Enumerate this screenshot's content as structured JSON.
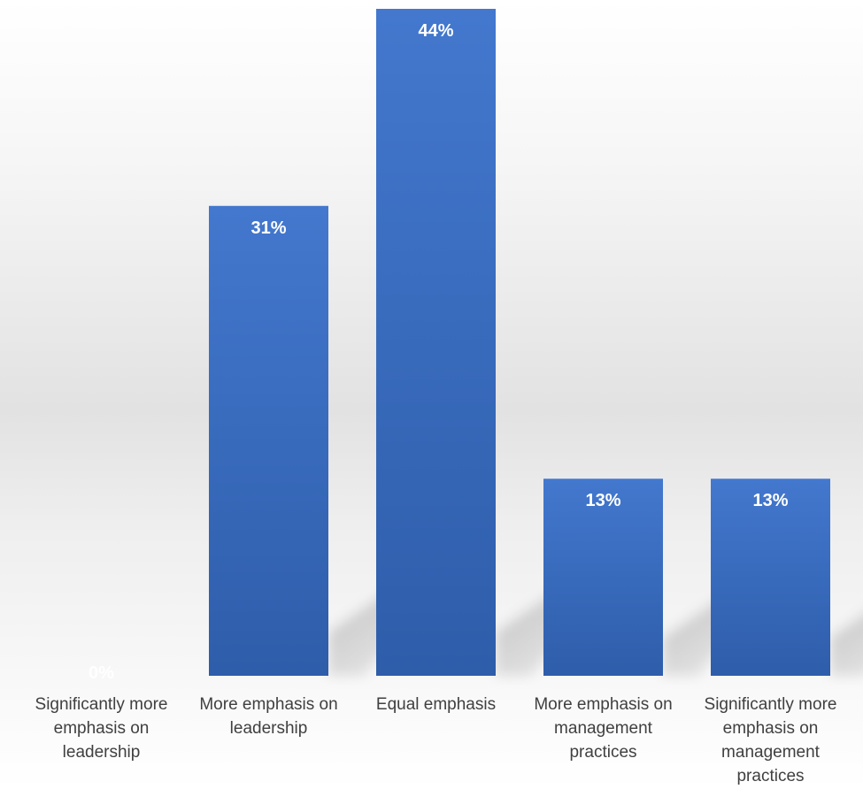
{
  "chart_data": {
    "type": "bar",
    "title": "",
    "xlabel": "",
    "ylabel": "",
    "ylim": [
      0,
      44
    ],
    "grid": false,
    "legend": "none",
    "categories": [
      "Significantly more emphasis on leadership",
      "More emphasis on leadership",
      "Equal emphasis",
      "More emphasis on management practices",
      "Significantly more emphasis on management practices"
    ],
    "category_lines": [
      [
        "Significantly more",
        "emphasis on",
        "leadership"
      ],
      [
        "More emphasis on",
        "leadership"
      ],
      [
        "Equal emphasis"
      ],
      [
        "More emphasis on",
        "management",
        "practices"
      ],
      [
        "Significantly more",
        "emphasis on",
        "management",
        "practices"
      ]
    ],
    "values": [
      0,
      31,
      44,
      13,
      13
    ],
    "data_labels": [
      "0%",
      "31%",
      "44%",
      "13%",
      "13%"
    ],
    "colors": {
      "bar_top": "#4378CE",
      "bar_bottom": "#2E5DAA",
      "label_text": "#FFFFFF",
      "category_text": "#404040"
    }
  }
}
